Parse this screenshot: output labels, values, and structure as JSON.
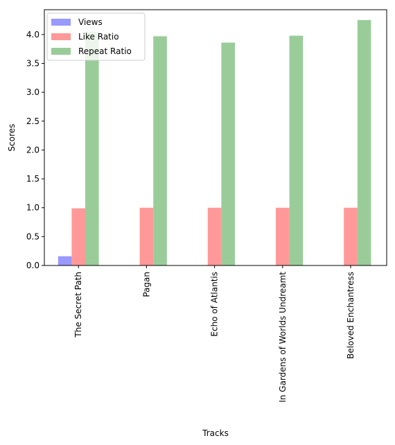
{
  "chart_data": {
    "type": "bar",
    "title": "",
    "xlabel": "Tracks",
    "ylabel": "Scores",
    "categories": [
      "The Secret Path",
      "Pagan",
      "Echo of Atlantis",
      "In Gardens of Worlds Undreamt",
      "Beloved Enchantress"
    ],
    "series": [
      {
        "name": "Views",
        "color": "#9999ff",
        "values": [
          0.16,
          0.0,
          0.0,
          0.0,
          0.0
        ]
      },
      {
        "name": "Like Ratio",
        "color": "#ff9999",
        "values": [
          0.99,
          1.0,
          1.0,
          1.0,
          1.0
        ]
      },
      {
        "name": "Repeat Ratio",
        "color": "#99cc99",
        "values": [
          4.05,
          3.97,
          3.86,
          3.98,
          4.25
        ]
      }
    ],
    "ylim": [
      0,
      4.43
    ],
    "yticks": [
      "0.0",
      "0.5",
      "1.0",
      "1.5",
      "2.0",
      "2.5",
      "3.0",
      "3.5",
      "4.0"
    ],
    "grid": false,
    "legend_position": "top-left"
  }
}
